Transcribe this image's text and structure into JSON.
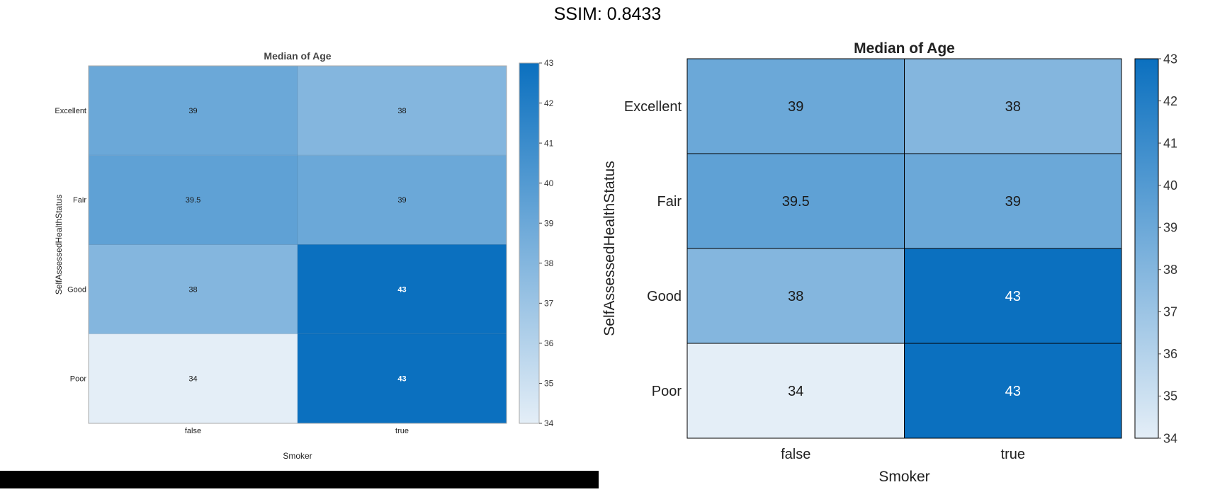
{
  "page": {
    "title": "SSIM: 0.8433"
  },
  "chart_data": [
    {
      "type": "heatmap",
      "panel": "left",
      "title": "Median of Age",
      "xlabel": "Smoker",
      "ylabel": "SelfAssessedHealthStatus",
      "x_categories": [
        "false",
        "true"
      ],
      "y_categories": [
        "Excellent",
        "Fair",
        "Good",
        "Poor"
      ],
      "values": [
        [
          39,
          38
        ],
        [
          39.5,
          39
        ],
        [
          38,
          43
        ],
        [
          34,
          43
        ]
      ],
      "labels": [
        [
          "39",
          "38"
        ],
        [
          "39.5",
          "39"
        ],
        [
          "38",
          "43"
        ],
        [
          "34",
          "43"
        ]
      ],
      "colorbar": {
        "min": 34,
        "max": 43,
        "ticks": [
          "34",
          "35",
          "36",
          "37",
          "38",
          "39",
          "40",
          "41",
          "42",
          "43"
        ]
      },
      "colors": {
        "low": "#e4eef7",
        "high": "#0b70bf"
      }
    },
    {
      "type": "heatmap",
      "panel": "right",
      "title": "Median of Age",
      "xlabel": "Smoker",
      "ylabel": "SelfAssessedHealthStatus",
      "x_categories": [
        "false",
        "true"
      ],
      "y_categories": [
        "Excellent",
        "Fair",
        "Good",
        "Poor"
      ],
      "values": [
        [
          39,
          38
        ],
        [
          39.5,
          39
        ],
        [
          38,
          43
        ],
        [
          34,
          43
        ]
      ],
      "labels": [
        [
          "39",
          "38"
        ],
        [
          "39.5",
          "39"
        ],
        [
          "38",
          "43"
        ],
        [
          "34",
          "43"
        ]
      ],
      "colorbar": {
        "min": 34,
        "max": 43,
        "ticks": [
          "34",
          "35",
          "36",
          "37",
          "38",
          "39",
          "40",
          "41",
          "42",
          "43"
        ]
      },
      "colors": {
        "low": "#e4eef7",
        "high": "#0b70bf"
      }
    }
  ]
}
